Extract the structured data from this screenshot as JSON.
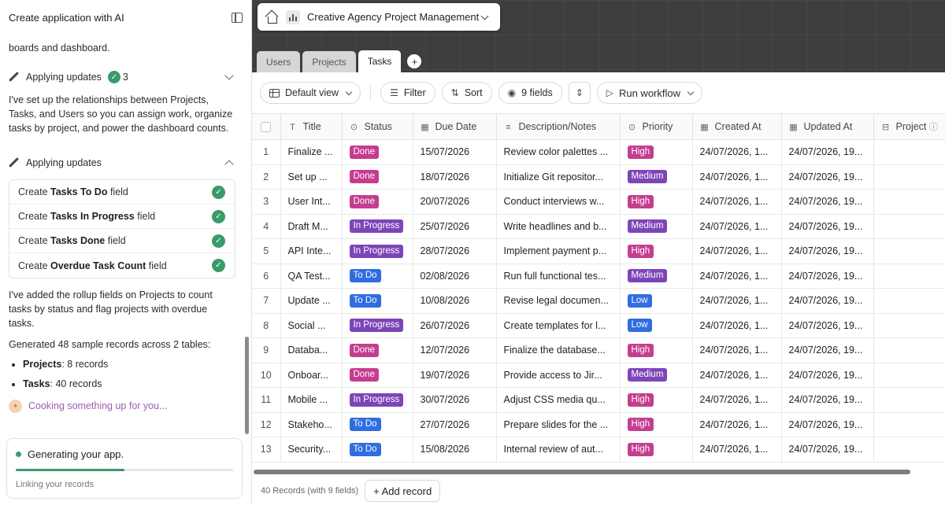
{
  "left_panel": {
    "title": "Create application with AI",
    "intro_tail": "boards and dashboard.",
    "updates1": {
      "label": "Applying updates",
      "count": "3"
    },
    "para1": "I've set up the relationships between Projects, Tasks, and Users so you can assign work, organize tasks by project, and power the dashboard counts.",
    "updates2": {
      "label": "Applying updates"
    },
    "tasks": [
      {
        "prefix": "Create ",
        "bold": "Tasks To Do",
        "suffix": " field"
      },
      {
        "prefix": "Create ",
        "bold": "Tasks In Progress",
        "suffix": " field"
      },
      {
        "prefix": "Create ",
        "bold": "Tasks Done",
        "suffix": " field"
      },
      {
        "prefix": "Create ",
        "bold": "Overdue Task Count",
        "suffix": " field"
      }
    ],
    "para2": "I've added the rollup fields on Projects to count tasks by status and flag projects with overdue tasks.",
    "para3": "Generated 48 sample records across 2 tables:",
    "bullets": [
      {
        "bold": "Projects",
        "rest": ": 8 records"
      },
      {
        "bold": "Tasks",
        "rest": ": 40 records"
      }
    ],
    "cooking": "Cooking something up for you...",
    "generating": {
      "title": "Generating your app.",
      "subtitle": "Linking your records",
      "progress_percent": 50
    }
  },
  "project": {
    "name": "Creative Agency Project Management"
  },
  "tabs": [
    "Users",
    "Projects",
    "Tasks"
  ],
  "active_tab": "Tasks",
  "toolbar": {
    "view": "Default view",
    "filter": "Filter",
    "sort": "Sort",
    "fields": "9 fields",
    "run": "Run workflow"
  },
  "columns": [
    "Title",
    "Status",
    "Due Date",
    "Description/Notes",
    "Priority",
    "Created At",
    "Updated At",
    "Project"
  ],
  "rows": [
    {
      "n": "1",
      "title": "Finalize ...",
      "status": "Done",
      "due": "15/07/2026",
      "desc": "Review color palettes ...",
      "priority": "High",
      "created": "24/07/2026, 1...",
      "updated": "24/07/2026, 19..."
    },
    {
      "n": "2",
      "title": "Set up ...",
      "status": "Done",
      "due": "18/07/2026",
      "desc": "Initialize Git repositor...",
      "priority": "Medium",
      "created": "24/07/2026, 1...",
      "updated": "24/07/2026, 19..."
    },
    {
      "n": "3",
      "title": "User Int...",
      "status": "Done",
      "due": "20/07/2026",
      "desc": "Conduct interviews w...",
      "priority": "High",
      "created": "24/07/2026, 1...",
      "updated": "24/07/2026, 19..."
    },
    {
      "n": "4",
      "title": "Draft M...",
      "status": "In Progress",
      "due": "25/07/2026",
      "desc": "Write headlines and b...",
      "priority": "Medium",
      "created": "24/07/2026, 1...",
      "updated": "24/07/2026, 19..."
    },
    {
      "n": "5",
      "title": "API Inte...",
      "status": "In Progress",
      "due": "28/07/2026",
      "desc": "Implement payment p...",
      "priority": "High",
      "created": "24/07/2026, 1...",
      "updated": "24/07/2026, 19..."
    },
    {
      "n": "6",
      "title": "QA Test...",
      "status": "To Do",
      "due": "02/08/2026",
      "desc": "Run full functional tes...",
      "priority": "Medium",
      "created": "24/07/2026, 1...",
      "updated": "24/07/2026, 19..."
    },
    {
      "n": "7",
      "title": "Update ...",
      "status": "To Do",
      "due": "10/08/2026",
      "desc": "Revise legal documen...",
      "priority": "Low",
      "created": "24/07/2026, 1...",
      "updated": "24/07/2026, 19..."
    },
    {
      "n": "8",
      "title": "Social ...",
      "status": "In Progress",
      "due": "26/07/2026",
      "desc": "Create templates for l...",
      "priority": "Low",
      "created": "24/07/2026, 1...",
      "updated": "24/07/2026, 19..."
    },
    {
      "n": "9",
      "title": "Databa...",
      "status": "Done",
      "due": "12/07/2026",
      "desc": "Finalize the database...",
      "priority": "High",
      "created": "24/07/2026, 1...",
      "updated": "24/07/2026, 19..."
    },
    {
      "n": "10",
      "title": "Onboar...",
      "status": "Done",
      "due": "19/07/2026",
      "desc": "Provide access to Jir...",
      "priority": "Medium",
      "created": "24/07/2026, 1...",
      "updated": "24/07/2026, 19..."
    },
    {
      "n": "11",
      "title": "Mobile ...",
      "status": "In Progress",
      "due": "30/07/2026",
      "desc": "Adjust CSS media qu...",
      "priority": "High",
      "created": "24/07/2026, 1...",
      "updated": "24/07/2026, 19..."
    },
    {
      "n": "12",
      "title": "Stakeho...",
      "status": "To Do",
      "due": "27/07/2026",
      "desc": "Prepare slides for the ...",
      "priority": "High",
      "created": "24/07/2026, 1...",
      "updated": "24/07/2026, 19..."
    },
    {
      "n": "13",
      "title": "Security...",
      "status": "To Do",
      "due": "15/08/2026",
      "desc": "Internal review of aut...",
      "priority": "High",
      "created": "24/07/2026, 1...",
      "updated": "24/07/2026, 19..."
    }
  ],
  "footer": {
    "count": "40 Records (with 9 fields)",
    "add": "+ Add record"
  },
  "colors": {
    "done": "#c43d8f",
    "in_progress": "#7d45b8",
    "to_do": "#2f6de0",
    "accent_green": "#3a9b6b"
  }
}
